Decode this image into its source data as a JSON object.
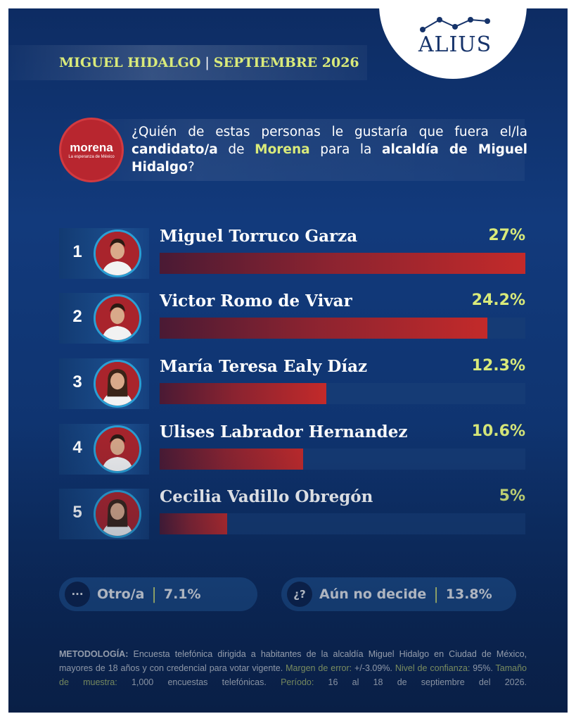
{
  "brand": {
    "name": "ALIUS"
  },
  "header": {
    "location": "MIGUEL HIDALGO",
    "period": "SEPTIEMBRE 2026"
  },
  "party_logo": {
    "name": "morena",
    "tagline": "La esperanza de México"
  },
  "question": {
    "p1": "¿Quién de estas personas le gustaría que fuera el/la ",
    "p2": "candidato/a",
    "p3": " de ",
    "p4": "Morena",
    "p5": " para la ",
    "p6": "alcaldía de Miguel Hidalgo",
    "p7": "?"
  },
  "chart_data": {
    "type": "bar",
    "categories": [
      "Miguel Torruco Garza",
      "Victor Romo de Vivar",
      "María Teresa Ealy Díaz",
      "Ulises Labrador Hernandez",
      "Cecilia Vadillo Obregón"
    ],
    "values": [
      27,
      24.2,
      12.3,
      10.6,
      5
    ],
    "value_labels": [
      "27%",
      "24.2%",
      "12.3%",
      "10.6%",
      "5%"
    ],
    "ranks": [
      "1",
      "2",
      "3",
      "4",
      "5"
    ],
    "ylim": [
      0,
      27
    ],
    "orientation": "horizontal"
  },
  "other": {
    "icon": "···",
    "label": "Otro/a",
    "value": "7.1%"
  },
  "undecided": {
    "icon": "¿?",
    "label": "Aún no decide",
    "value": "13.8%"
  },
  "methodology": {
    "label": "METODOLOGÍA:",
    "text": " Encuesta telefónica dirigida a habitantes de la alcaldía Miguel Hidalgo en Ciudad de México, mayores de 18 años y con credencial para votar vigente. ",
    "margin_label": "Margen de error:",
    "margin_value": " +/-3.09%. ",
    "confidence_label": "Nivel de confianza:",
    "confidence_value": " 95%. ",
    "sample_label": "Tamaño de muestra:",
    "sample_value": " 1,000 encuestas telefónicas. ",
    "period_label": "Período:",
    "period_value": " 16 al 18 de septiembre del 2026."
  },
  "colors": {
    "accent": "#d9ea7a",
    "bar": "#c32a2a",
    "background": "#123a7c"
  }
}
